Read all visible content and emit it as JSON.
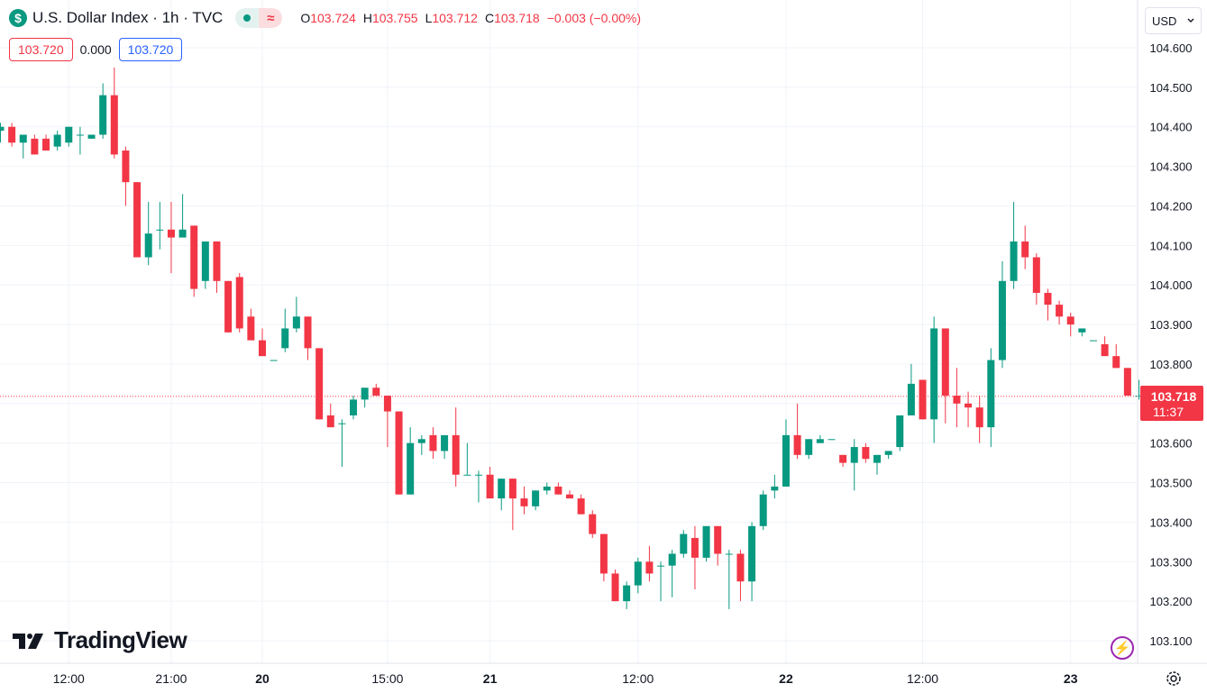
{
  "header": {
    "title": "U.S. Dollar Index · 1h · TVC",
    "symbol_icon": "$",
    "ohlc": {
      "o_label": "O",
      "o": "103.724",
      "h_label": "H",
      "h": "103.755",
      "l_label": "L",
      "l": "103.712",
      "c_label": "C",
      "c": "103.718",
      "change": "−0.003 (−0.00%)"
    },
    "change_color": "#f23645"
  },
  "quote": {
    "sell": "103.720",
    "spread": "0.000",
    "buy": "103.720"
  },
  "currency": {
    "label": "USD"
  },
  "brand": {
    "name": "TradingView"
  },
  "price_tag": {
    "price": "103.718",
    "countdown": "11:37"
  },
  "icons": [
    "dollar-icon",
    "green-dot-icon",
    "wave-icon",
    "chevron-down-icon",
    "tradingview-logo-icon",
    "lightning-icon",
    "gear-icon"
  ],
  "colors": {
    "up": "#089981",
    "down": "#f23645",
    "grid": "#f0f3fa",
    "text": "#131722"
  },
  "chart_data": {
    "type": "candlestick",
    "ylim": [
      103.06,
      104.64
    ],
    "y_ticks": [
      "104.600",
      "104.500",
      "104.400",
      "104.300",
      "104.200",
      "104.100",
      "104.000",
      "103.900",
      "103.800",
      "103.700",
      "103.600",
      "103.500",
      "103.400",
      "103.300",
      "103.200",
      "103.100"
    ],
    "x_ticks": [
      {
        "label": "12:00",
        "i": 6,
        "bold": false
      },
      {
        "label": "21:00",
        "i": 15,
        "bold": false
      },
      {
        "label": "20",
        "i": 23,
        "bold": true
      },
      {
        "label": "15:00",
        "i": 34,
        "bold": false
      },
      {
        "label": "21",
        "i": 43,
        "bold": true
      },
      {
        "label": "12:00",
        "i": 56,
        "bold": false
      },
      {
        "label": "22",
        "i": 69,
        "bold": true
      },
      {
        "label": "12:00",
        "i": 81,
        "bold": false
      },
      {
        "label": "23",
        "i": 94,
        "bold": true
      }
    ],
    "last_price": 103.718,
    "candles": [
      [
        104.39,
        104.41,
        104.36,
        104.4
      ],
      [
        104.4,
        104.41,
        104.35,
        104.36
      ],
      [
        104.36,
        104.38,
        104.32,
        104.38
      ],
      [
        104.37,
        104.38,
        104.33,
        104.33
      ],
      [
        104.37,
        104.38,
        104.34,
        104.34
      ],
      [
        104.35,
        104.39,
        104.34,
        104.38
      ],
      [
        104.36,
        104.4,
        104.35,
        104.4
      ],
      [
        104.38,
        104.4,
        104.33,
        104.38
      ],
      [
        104.37,
        104.38,
        104.37,
        104.38
      ],
      [
        104.38,
        104.51,
        104.37,
        104.48
      ],
      [
        104.48,
        104.55,
        104.32,
        104.33
      ],
      [
        104.34,
        104.35,
        104.2,
        104.26
      ],
      [
        104.26,
        104.26,
        104.07,
        104.07
      ],
      [
        104.07,
        104.21,
        104.05,
        104.13
      ],
      [
        104.14,
        104.21,
        104.09,
        104.14
      ],
      [
        104.14,
        104.21,
        104.03,
        104.12
      ],
      [
        104.12,
        104.23,
        104.12,
        104.14
      ],
      [
        104.15,
        104.15,
        103.97,
        103.99
      ],
      [
        104.01,
        104.11,
        103.99,
        104.11
      ],
      [
        104.11,
        104.11,
        103.98,
        104.01
      ],
      [
        104.01,
        104.01,
        103.88,
        103.88
      ],
      [
        104.02,
        104.03,
        103.88,
        103.89
      ],
      [
        103.92,
        103.94,
        103.86,
        103.86
      ],
      [
        103.86,
        103.89,
        103.82,
        103.82
      ],
      [
        103.81,
        103.81,
        103.81,
        103.81
      ],
      [
        103.84,
        103.94,
        103.83,
        103.89
      ],
      [
        103.89,
        103.97,
        103.88,
        103.92
      ],
      [
        103.92,
        103.92,
        103.81,
        103.84
      ],
      [
        103.84,
        103.84,
        103.66,
        103.66
      ],
      [
        103.67,
        103.7,
        103.64,
        103.64
      ],
      [
        103.65,
        103.66,
        103.54,
        103.65
      ],
      [
        103.67,
        103.72,
        103.66,
        103.71
      ],
      [
        103.71,
        103.73,
        103.69,
        103.74
      ],
      [
        103.74,
        103.75,
        103.72,
        103.72
      ],
      [
        103.72,
        103.72,
        103.59,
        103.68
      ],
      [
        103.68,
        103.68,
        103.47,
        103.47
      ],
      [
        103.47,
        103.64,
        103.47,
        103.6
      ],
      [
        103.6,
        103.62,
        103.57,
        103.61
      ],
      [
        103.62,
        103.64,
        103.56,
        103.58
      ],
      [
        103.58,
        103.62,
        103.56,
        103.62
      ],
      [
        103.62,
        103.69,
        103.49,
        103.52
      ],
      [
        103.52,
        103.6,
        103.52,
        103.52
      ],
      [
        103.52,
        103.53,
        103.45,
        103.52
      ],
      [
        103.52,
        103.54,
        103.46,
        103.46
      ],
      [
        103.46,
        103.51,
        103.43,
        103.51
      ],
      [
        103.51,
        103.51,
        103.38,
        103.46
      ],
      [
        103.46,
        103.49,
        103.42,
        103.44
      ],
      [
        103.44,
        103.48,
        103.43,
        103.48
      ],
      [
        103.48,
        103.5,
        103.47,
        103.49
      ],
      [
        103.49,
        103.5,
        103.47,
        103.47
      ],
      [
        103.47,
        103.48,
        103.46,
        103.46
      ],
      [
        103.46,
        103.47,
        103.42,
        103.42
      ],
      [
        103.42,
        103.43,
        103.36,
        103.37
      ],
      [
        103.37,
        103.37,
        103.25,
        103.27
      ],
      [
        103.27,
        103.28,
        103.2,
        103.2
      ],
      [
        103.2,
        103.25,
        103.18,
        103.24
      ],
      [
        103.24,
        103.31,
        103.22,
        103.3
      ],
      [
        103.3,
        103.34,
        103.25,
        103.27
      ],
      [
        103.29,
        103.3,
        103.2,
        103.29
      ],
      [
        103.29,
        103.33,
        103.21,
        103.32
      ],
      [
        103.32,
        103.38,
        103.31,
        103.37
      ],
      [
        103.36,
        103.39,
        103.23,
        103.31
      ],
      [
        103.31,
        103.38,
        103.3,
        103.39
      ],
      [
        103.39,
        103.39,
        103.29,
        103.32
      ],
      [
        103.32,
        103.33,
        103.18,
        103.32
      ],
      [
        103.32,
        103.33,
        103.2,
        103.25
      ],
      [
        103.25,
        103.4,
        103.2,
        103.39
      ],
      [
        103.39,
        103.48,
        103.38,
        103.47
      ],
      [
        103.48,
        103.52,
        103.46,
        103.49
      ],
      [
        103.49,
        103.66,
        103.49,
        103.62
      ],
      [
        103.62,
        103.7,
        103.56,
        103.57
      ],
      [
        103.57,
        103.61,
        103.56,
        103.61
      ],
      [
        103.6,
        103.62,
        103.6,
        103.61
      ],
      [
        103.61,
        103.61,
        103.61,
        103.61
      ],
      [
        103.57,
        103.57,
        103.54,
        103.55
      ],
      [
        103.55,
        103.61,
        103.48,
        103.59
      ],
      [
        103.59,
        103.6,
        103.55,
        103.56
      ],
      [
        103.55,
        103.57,
        103.52,
        103.57
      ],
      [
        103.57,
        103.58,
        103.56,
        103.58
      ],
      [
        103.59,
        103.67,
        103.58,
        103.67
      ],
      [
        103.67,
        103.8,
        103.67,
        103.75
      ],
      [
        103.76,
        103.76,
        103.66,
        103.66
      ],
      [
        103.66,
        103.92,
        103.6,
        103.89
      ],
      [
        103.89,
        103.89,
        103.65,
        103.72
      ],
      [
        103.72,
        103.79,
        103.64,
        103.7
      ],
      [
        103.7,
        103.73,
        103.64,
        103.69
      ],
      [
        103.69,
        103.72,
        103.6,
        103.64
      ],
      [
        103.64,
        103.84,
        103.59,
        103.81
      ],
      [
        103.81,
        104.06,
        103.79,
        104.01
      ],
      [
        104.01,
        104.21,
        103.99,
        104.11
      ],
      [
        104.11,
        104.15,
        104.04,
        104.07
      ],
      [
        104.07,
        104.08,
        103.95,
        103.98
      ],
      [
        103.98,
        103.99,
        103.91,
        103.95
      ],
      [
        103.95,
        103.96,
        103.9,
        103.92
      ],
      [
        103.92,
        103.93,
        103.87,
        103.9
      ],
      [
        103.88,
        103.89,
        103.87,
        103.89
      ],
      [
        103.86,
        103.86,
        103.86,
        103.86
      ],
      [
        103.85,
        103.87,
        103.82,
        103.82
      ],
      [
        103.82,
        103.85,
        103.79,
        103.79
      ],
      [
        103.79,
        103.79,
        103.72,
        103.72
      ],
      [
        103.72,
        103.76,
        103.71,
        103.72
      ]
    ]
  }
}
